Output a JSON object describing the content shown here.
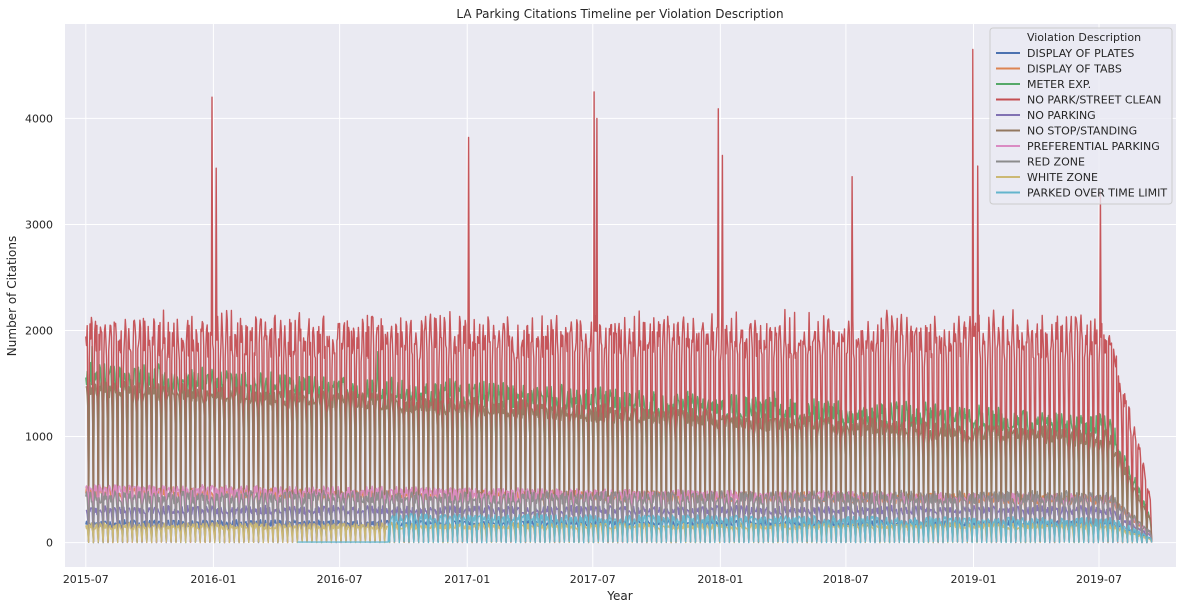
{
  "chart_data": {
    "type": "line",
    "title": "LA Parking Citations Timeline per Violation Description",
    "xlabel": "Year",
    "ylabel": "Number of Citations",
    "x_range": [
      "2015-06-01",
      "2019-10-20"
    ],
    "ylim": [
      -230,
      4890
    ],
    "x_ticks": [
      "2015-07",
      "2016-01",
      "2016-07",
      "2017-01",
      "2017-07",
      "2018-01",
      "2018-07",
      "2019-01",
      "2019-07"
    ],
    "y_ticks": [
      0,
      1000,
      2000,
      3000,
      4000
    ],
    "grid": true,
    "background": "#eaeaf2",
    "legend": {
      "title": "Violation Description",
      "placement": "top-right"
    },
    "series": [
      {
        "name": "DISPLAY OF PLATES",
        "color": "#4c72b0",
        "start": "2015-07-01",
        "end": "2019-09-15",
        "base": 150,
        "amp": 90,
        "noise": 30,
        "trend": [
          0,
          0
        ]
      },
      {
        "name": "DISPLAY OF TABS",
        "color": "#dd8452",
        "start": "2015-07-01",
        "end": "2019-09-15",
        "base": 430,
        "amp": 140,
        "noise": 50,
        "trend": [
          0,
          -80
        ]
      },
      {
        "name": "METER EXP.",
        "color": "#55a868",
        "start": "2015-07-01",
        "end": "2019-09-15",
        "base": 1150,
        "amp": 500,
        "noise": 120,
        "trend": [
          250,
          -250
        ],
        "spikes": [
          [
            "2015-07-10",
            1850
          ],
          [
            "2016-08-25",
            1800
          ],
          [
            "2017-03-10",
            1450
          ],
          [
            "2018-03-20",
            1420
          ]
        ]
      },
      {
        "name": "NO PARK/STREET CLEAN",
        "color": "#c44e52",
        "start": "2015-07-01",
        "end": "2019-09-15",
        "base": 1500,
        "amp": 1250,
        "noise": 200,
        "trend": [
          0,
          0
        ],
        "spikes": [
          [
            "2015-12-30",
            4200
          ],
          [
            "2016-01-05",
            3530
          ],
          [
            "2017-01-03",
            3820
          ],
          [
            "2017-07-03",
            4250
          ],
          [
            "2017-07-07",
            4000
          ],
          [
            "2017-12-29",
            4090
          ],
          [
            "2018-01-04",
            3650
          ],
          [
            "2018-07-10",
            3450
          ],
          [
            "2018-12-31",
            4650
          ],
          [
            "2019-01-07",
            3550
          ],
          [
            "2019-07-03",
            3310
          ]
        ]
      },
      {
        "name": "NO PARKING",
        "color": "#8172b3",
        "start": "2015-07-01",
        "end": "2019-09-15",
        "base": 260,
        "amp": 130,
        "noise": 40,
        "trend": [
          0,
          0
        ]
      },
      {
        "name": "NO STOP/STANDING",
        "color": "#937860",
        "start": "2015-07-01",
        "end": "2019-09-15",
        "base": 1000,
        "amp": 430,
        "noise": 80,
        "trend": [
          300,
          -200
        ]
      },
      {
        "name": "PREFERENTIAL PARKING",
        "color": "#da8bc3",
        "start": "2015-07-01",
        "end": "2019-09-15",
        "base": 420,
        "amp": 120,
        "noise": 40,
        "trend": [
          50,
          -50
        ]
      },
      {
        "name": "RED ZONE",
        "color": "#8c8c8c",
        "start": "2015-07-01",
        "end": "2019-09-15",
        "base": 360,
        "amp": 180,
        "noise": 60,
        "trend": [
          0,
          0
        ]
      },
      {
        "name": "WHITE ZONE",
        "color": "#ccb974",
        "start": "2015-07-01",
        "end": "2019-09-15",
        "base": 120,
        "amp": 100,
        "noise": 30,
        "trend": [
          0,
          0
        ]
      },
      {
        "name": "PARKED OVER TIME LIMIT",
        "color": "#64b5cd",
        "start": "2016-05-01",
        "end": "2019-09-15",
        "base": 200,
        "amp": 120,
        "noise": 40,
        "trend": [
          0,
          -50
        ],
        "zero_until": "2016-09-10"
      }
    ]
  }
}
